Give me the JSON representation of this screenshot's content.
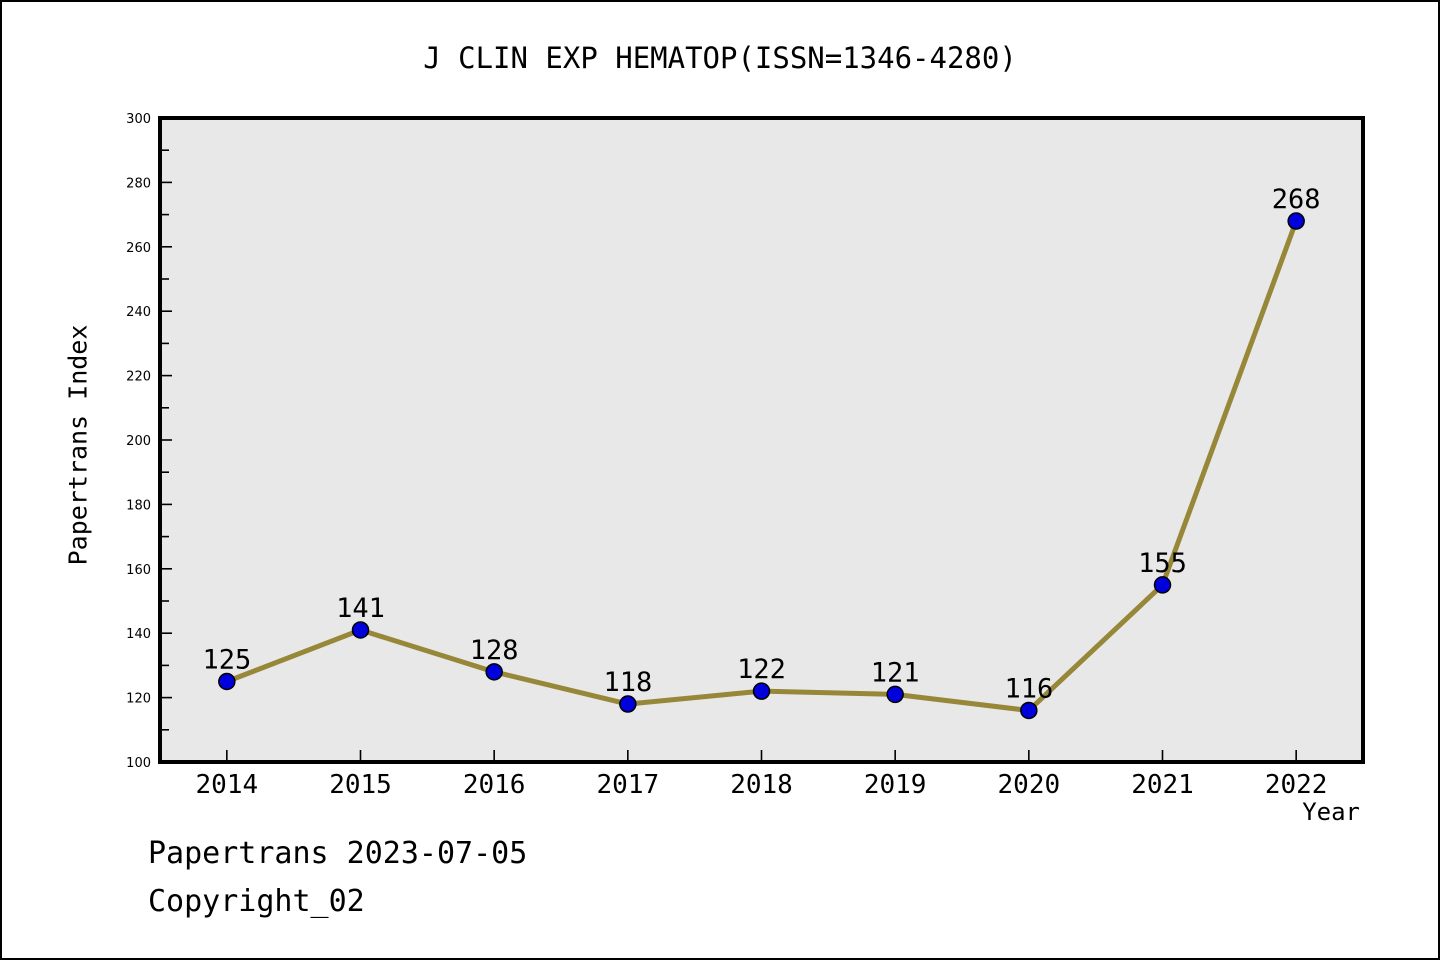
{
  "page": {
    "background": "#ffffff",
    "border_color": "#000000"
  },
  "chart_data": {
    "type": "line",
    "title": "J CLIN EXP HEMATOP(ISSN=1346-4280)",
    "xlabel": "Year",
    "ylabel": "Papertrans Index",
    "x": [
      2014,
      2015,
      2016,
      2017,
      2018,
      2019,
      2020,
      2021,
      2022
    ],
    "values": [
      125,
      141,
      128,
      118,
      122,
      121,
      116,
      155,
      268
    ],
    "point_labels": [
      "125",
      "141",
      "128",
      "118",
      "122",
      "121",
      "116",
      "155",
      "268"
    ],
    "xlim": [
      2013.5,
      2022.5
    ],
    "ylim": [
      100,
      300
    ],
    "y_major_ticks": [
      100,
      120,
      140,
      160,
      180,
      200,
      220,
      240,
      260,
      280,
      300
    ],
    "y_minor_step": 10,
    "grid": false,
    "legend": "none",
    "line_color": "#978738",
    "marker_color": "#0000dd",
    "marker_edge_color": "#000000",
    "plot_background": "#e8e8e8",
    "axis_color": "#000000"
  },
  "footer": {
    "line1": "Papertrans 2023-07-05",
    "line2": "Copyright_02"
  }
}
